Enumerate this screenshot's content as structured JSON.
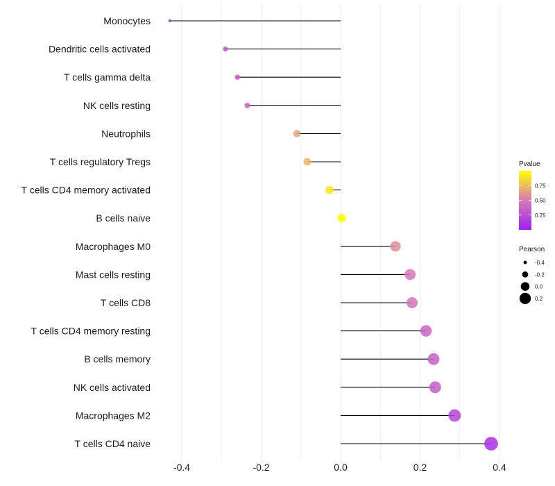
{
  "chart_data": {
    "type": "lollipop",
    "title": "",
    "xlabel": "",
    "ylabel": "",
    "xlim": [
      -0.45,
      0.42
    ],
    "x_ticks": [
      -0.4,
      -0.2,
      0.0,
      0.2,
      0.4
    ],
    "x_tick_labels": [
      "-0.4",
      "-0.2",
      "0.0",
      "0.2",
      "0.4"
    ],
    "grid": true,
    "categories": [
      "Monocytes",
      "Dendritic cells activated",
      "T cells gamma delta",
      "NK cells resting",
      "Neutrophils",
      "T cells regulatory  Tregs",
      "T cells CD4 memory activated",
      "B cells naive",
      "Macrophages M0",
      "Mast cells resting",
      "T cells CD8",
      "T cells CD4 memory resting",
      "B cells memory",
      "NK cells activated",
      "Macrophages M2",
      "T cells CD4 naive"
    ],
    "pearson": [
      -0.43,
      -0.29,
      -0.26,
      -0.235,
      -0.11,
      -0.084,
      -0.028,
      0.003,
      0.138,
      0.175,
      0.18,
      0.215,
      0.234,
      0.238,
      0.287,
      0.379
    ],
    "pvalue": [
      0.1,
      0.25,
      0.32,
      0.37,
      0.66,
      0.74,
      0.91,
      0.99,
      0.57,
      0.49,
      0.47,
      0.38,
      0.35,
      0.34,
      0.2,
      0.09
    ],
    "legend": {
      "color": {
        "title": "Pvalue",
        "ticks": [
          0.25,
          0.5,
          0.75
        ],
        "tick_labels": [
          "0.25",
          "0.50",
          "0.75"
        ],
        "range": [
          0.0,
          1.0
        ],
        "low_color": "#A020F0",
        "mid_color": "#D67BB5",
        "high_color": "#FFFF00",
        "placement": "right"
      },
      "size": {
        "title": "Pearson",
        "values": [
          -0.4,
          -0.2,
          0.0,
          0.2
        ],
        "labels": [
          "-0.4",
          "-0.2",
          "0.0",
          "0.2"
        ],
        "placement": "right"
      }
    },
    "segment_color": "#000000"
  }
}
